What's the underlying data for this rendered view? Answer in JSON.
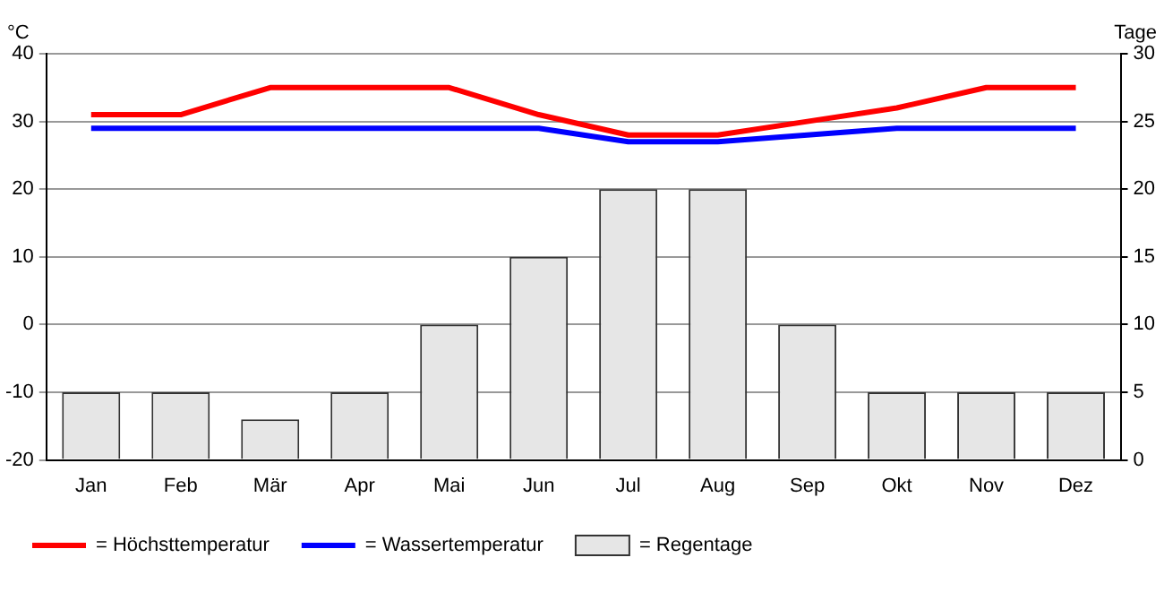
{
  "chart_data": {
    "type": "bar",
    "ylabel": "°C",
    "y2label": "Tage",
    "categories": [
      "Jan",
      "Feb",
      "Mär",
      "Apr",
      "Mai",
      "Jun",
      "Jul",
      "Aug",
      "Sep",
      "Okt",
      "Nov",
      "Dez"
    ],
    "series": [
      {
        "name": "= Höchsttemperatur",
        "type": "line",
        "color": "#ff0000",
        "values": [
          31,
          31,
          35,
          35,
          35,
          31,
          28,
          28,
          30,
          32,
          35,
          35
        ]
      },
      {
        "name": "= Wassertemperatur",
        "type": "line",
        "color": "#0000ff",
        "values": [
          29,
          29,
          29,
          29,
          29,
          29,
          27,
          27,
          28,
          29,
          29,
          29
        ]
      },
      {
        "name": "= Regentage",
        "axis": "y2",
        "color": "#e6e6e6",
        "values": [
          5,
          5,
          3,
          5,
          10,
          15,
          20,
          20,
          10,
          5,
          5,
          5
        ]
      }
    ],
    "ylim": [
      -20,
      40
    ],
    "yticks": [
      -20,
      -10,
      0,
      10,
      20,
      30,
      40
    ],
    "y2lim": [
      0,
      30
    ],
    "y2ticks": [
      0,
      5,
      10,
      15,
      20,
      25,
      30
    ],
    "grid": "y",
    "legend": "bottom left",
    "marker": "none",
    "line_style": "solid"
  }
}
